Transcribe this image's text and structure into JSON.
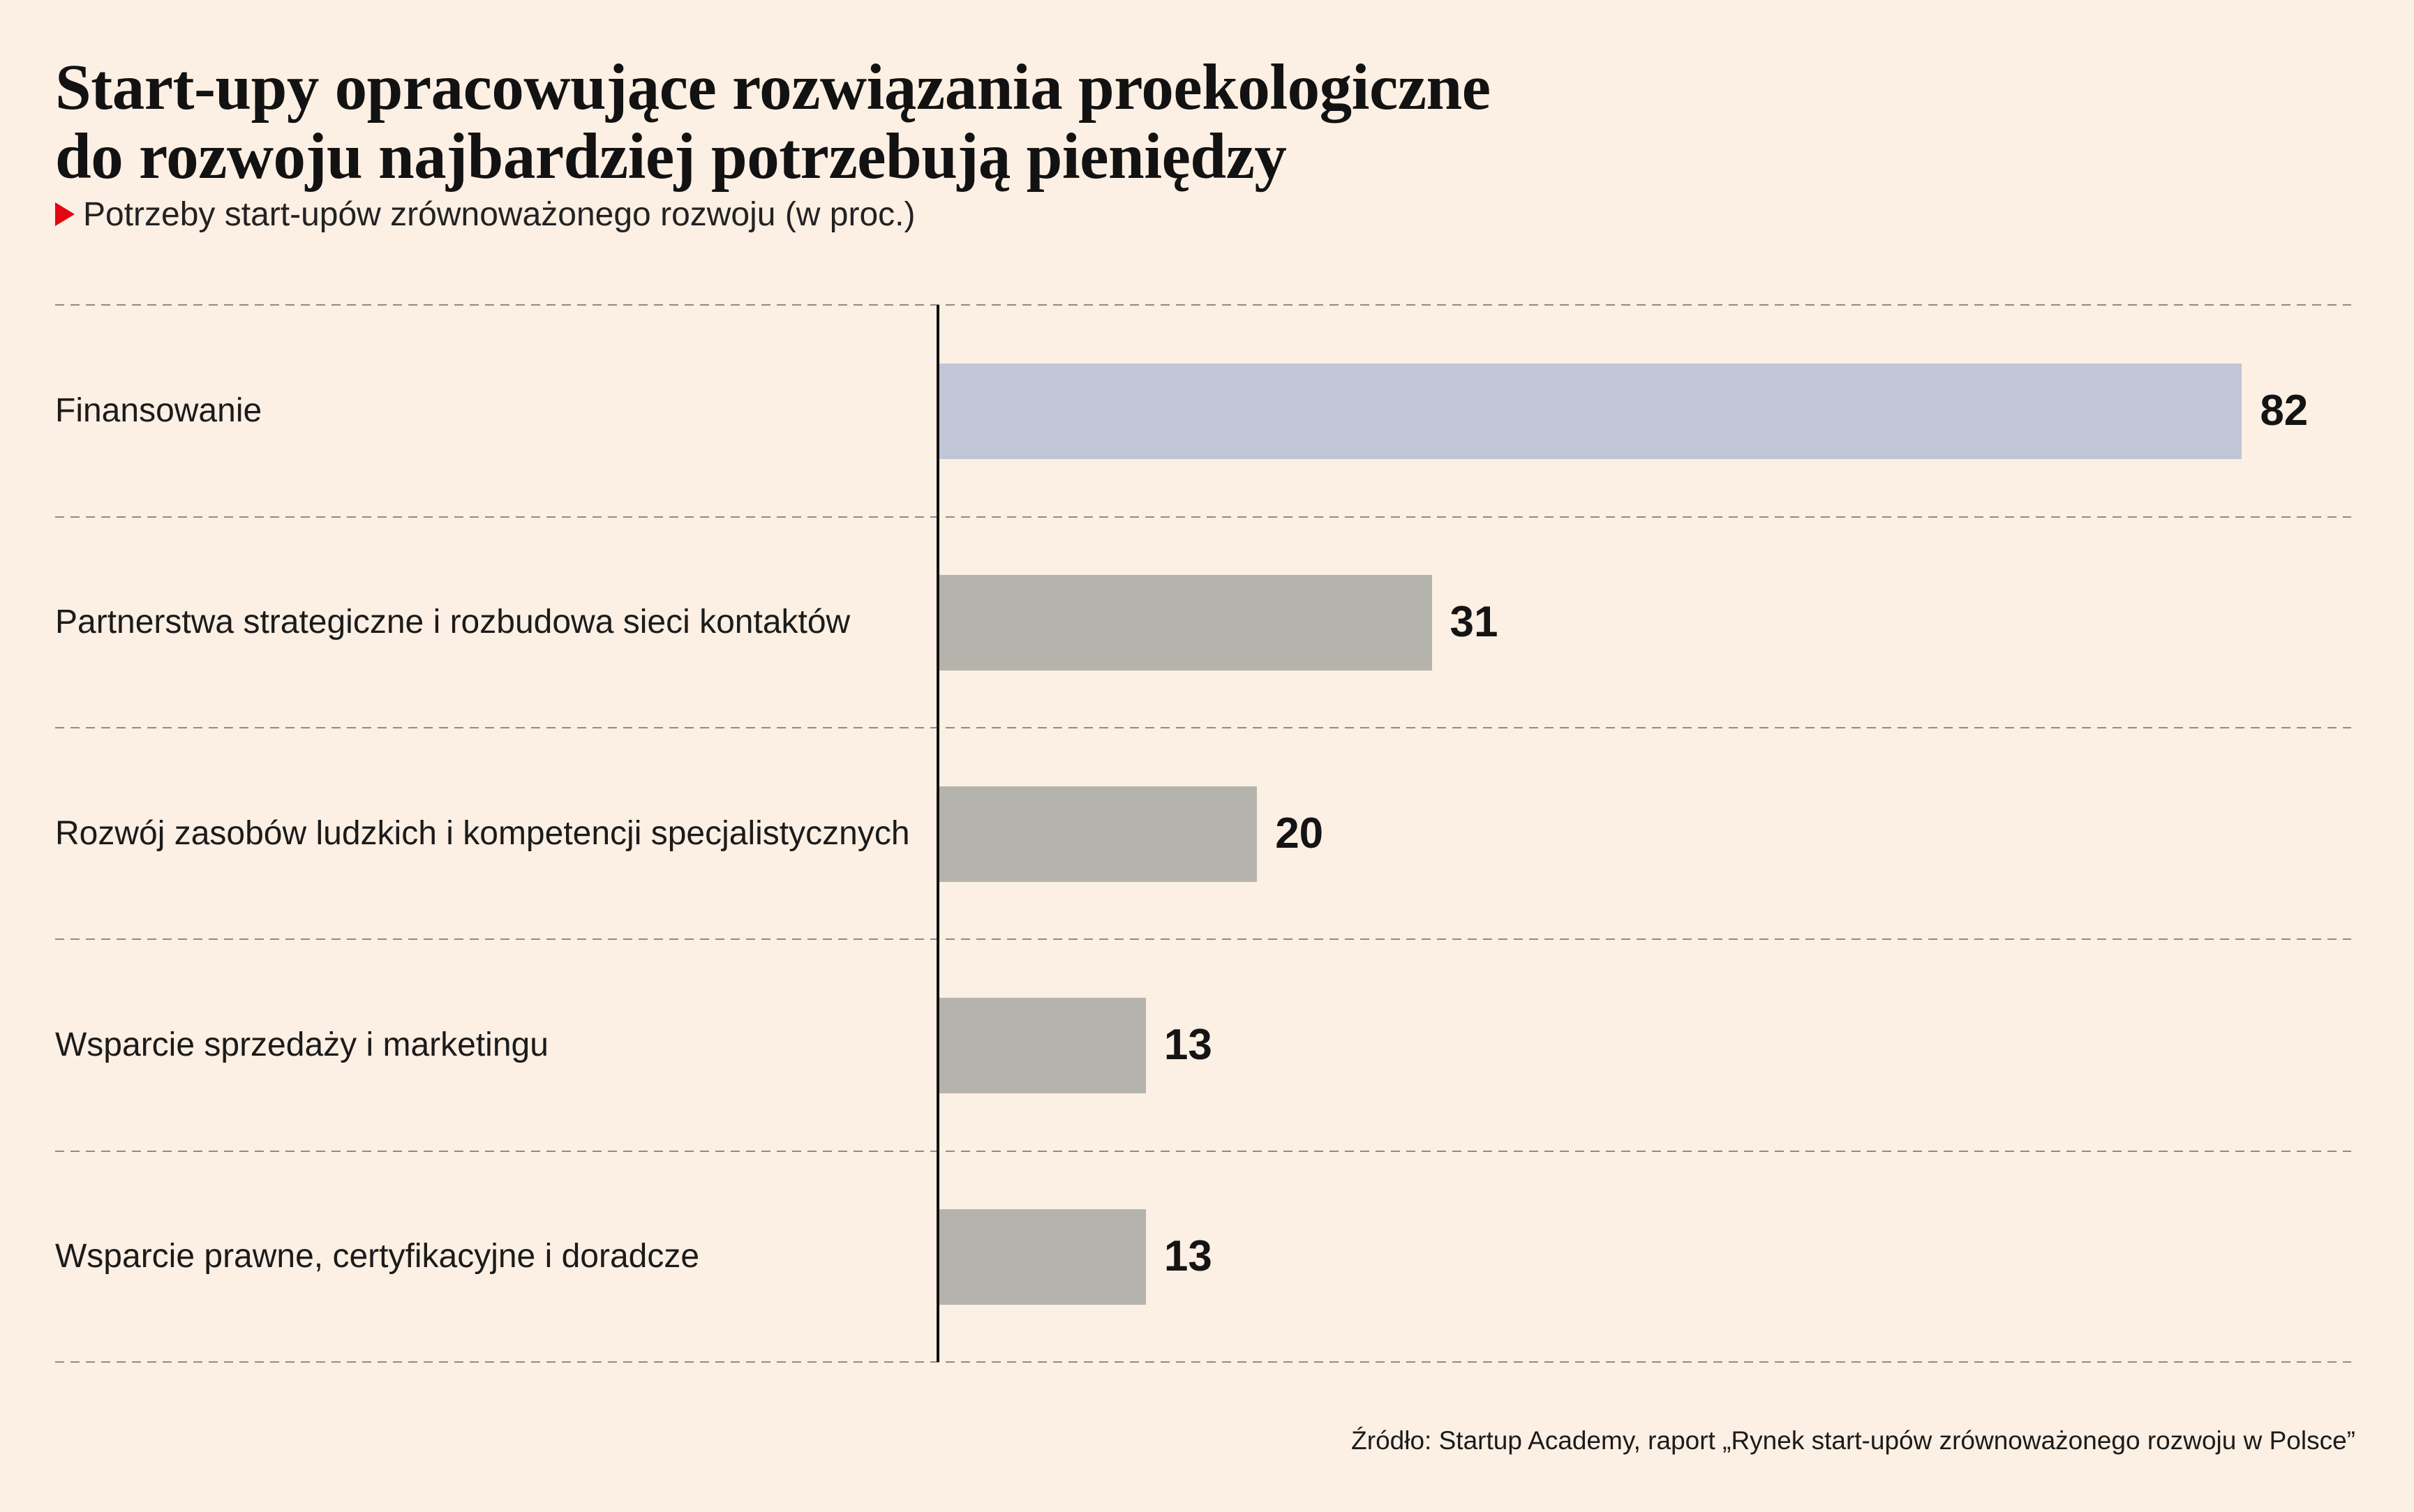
{
  "page": {
    "background_color": "#fcefe3",
    "accent_color": "#e30613",
    "subtitle_marker_icon": "triangle-right-icon"
  },
  "chart_data": {
    "type": "bar",
    "orientation": "horizontal",
    "title": [
      "Start-upy opracowujące rozwiązania proekologiczne",
      "do rozwoju najbardziej potrzebują pieniędzy"
    ],
    "subtitle": "Potrzeby start-upów zrównoważonego rozwoju (w proc.)",
    "categories": [
      "Finansowanie",
      "Partnerstwa strategiczne i rozbudowa sieci kontaktów",
      "Rozwój zasobów ludzkich i kompetencji specjalistycznych",
      "Wsparcie sprzedaży i marketingu",
      "Wsparcie prawne, certyfikacyjne i doradcze"
    ],
    "values": [
      82,
      31,
      20,
      13,
      13
    ],
    "xlabel": "",
    "ylabel": "",
    "data_labels": true,
    "grid": true,
    "legend": false,
    "bar_colors": [
      "#c1c6d6",
      "#b5b4ac",
      "#b5b4ac",
      "#b5b4ac",
      "#b5b4ac"
    ],
    "source": "Źródło: Startup Academy, raport „Rynek start-upów zrównoważonego rozwoju w Polsce”"
  }
}
